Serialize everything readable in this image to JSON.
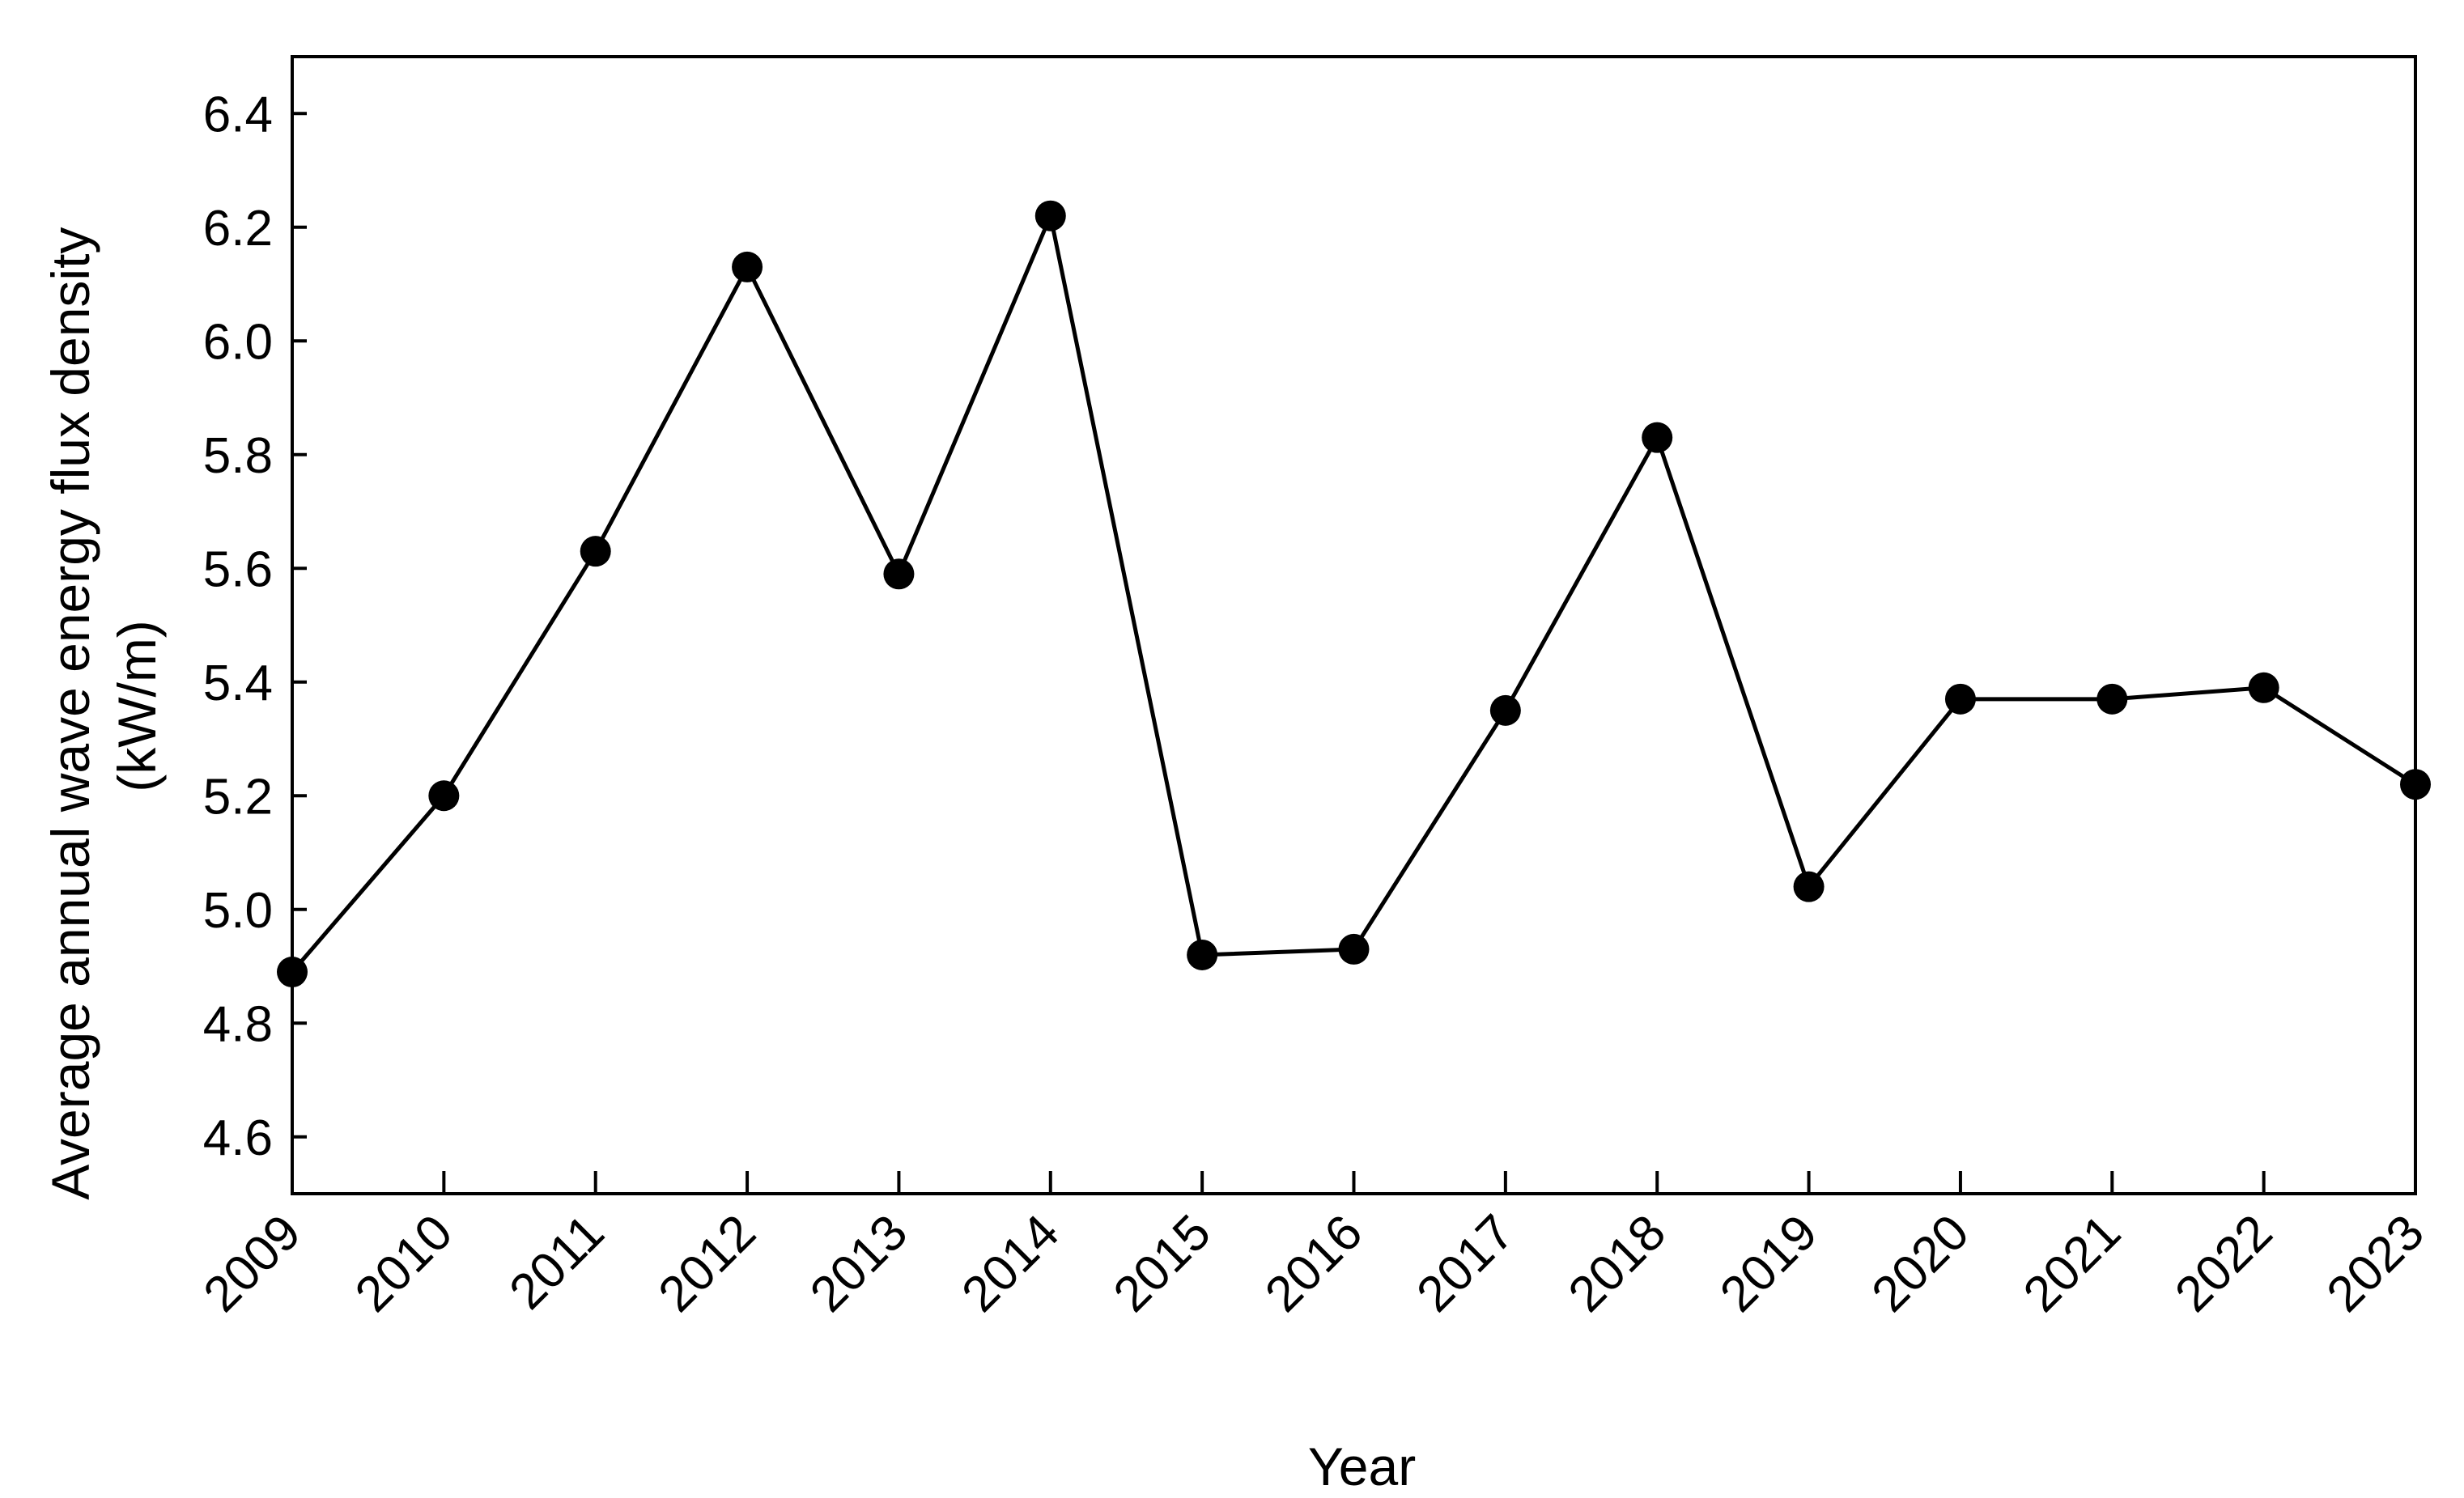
{
  "chart_data": {
    "type": "line",
    "xlabel": "Year",
    "ylabel": [
      "Average annual wave energy flux density",
      "(kW/m)"
    ],
    "categories": [
      "2009",
      "2010",
      "2011",
      "2012",
      "2013",
      "2014",
      "2015",
      "2016",
      "2017",
      "2018",
      "2019",
      "2020",
      "2021",
      "2022",
      "2023"
    ],
    "series": [
      {
        "values": [
          4.89,
          5.2,
          5.63,
          6.13,
          5.59,
          6.22,
          4.92,
          4.93,
          5.35,
          5.83,
          5.04,
          5.37,
          5.37,
          5.39,
          5.22
        ],
        "color": "#000000",
        "marker": "filled-circle"
      }
    ],
    "ylim": [
      4.5,
      6.5
    ],
    "yticks": [
      "4.6",
      "4.8",
      "5.0",
      "5.2",
      "5.4",
      "5.6",
      "5.8",
      "6.0",
      "6.2",
      "6.4"
    ],
    "ytick_values": [
      4.6,
      4.8,
      5.0,
      5.2,
      5.4,
      5.6,
      5.8,
      6.0,
      6.2,
      6.4
    ],
    "grid": false,
    "legend": false
  }
}
